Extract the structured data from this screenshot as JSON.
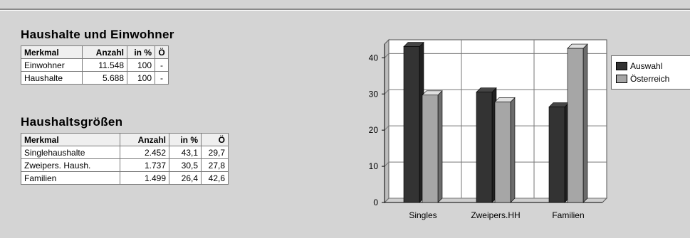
{
  "households": {
    "title": "Haushalte und Einwohner",
    "columns": [
      "Merkmal",
      "Anzahl",
      "in %",
      "Ö"
    ],
    "rows": [
      [
        "Einwohner",
        "11.548",
        "100",
        "-"
      ],
      [
        "Haushalte",
        "5.688",
        "100",
        "-"
      ]
    ]
  },
  "sizes": {
    "title": "Haushaltsgrößen",
    "columns": [
      "Merkmal",
      "Anzahl",
      "in %",
      "Ö"
    ],
    "rows": [
      [
        "Singlehaushalte",
        "2.452",
        "43,1",
        "29,7"
      ],
      [
        "Zweipers. Haush.",
        "1.737",
        "30,5",
        "27,8"
      ],
      [
        "Familien",
        "1.499",
        "26,4",
        "42,6"
      ]
    ]
  },
  "chart_data": {
    "type": "bar",
    "categories": [
      "Singles",
      "Zweipers.HH",
      "Familien"
    ],
    "series": [
      {
        "name": "Auswahl",
        "values": [
          43.1,
          30.5,
          26.4
        ],
        "color": "#333333"
      },
      {
        "name": "Österreich",
        "values": [
          29.7,
          27.8,
          42.6
        ],
        "color": "#a6a6a6"
      }
    ],
    "yticks": [
      "0",
      "10",
      "20",
      "30",
      "40"
    ],
    "ylim": [
      0,
      43.8
    ],
    "grid": true,
    "legend": "right"
  }
}
